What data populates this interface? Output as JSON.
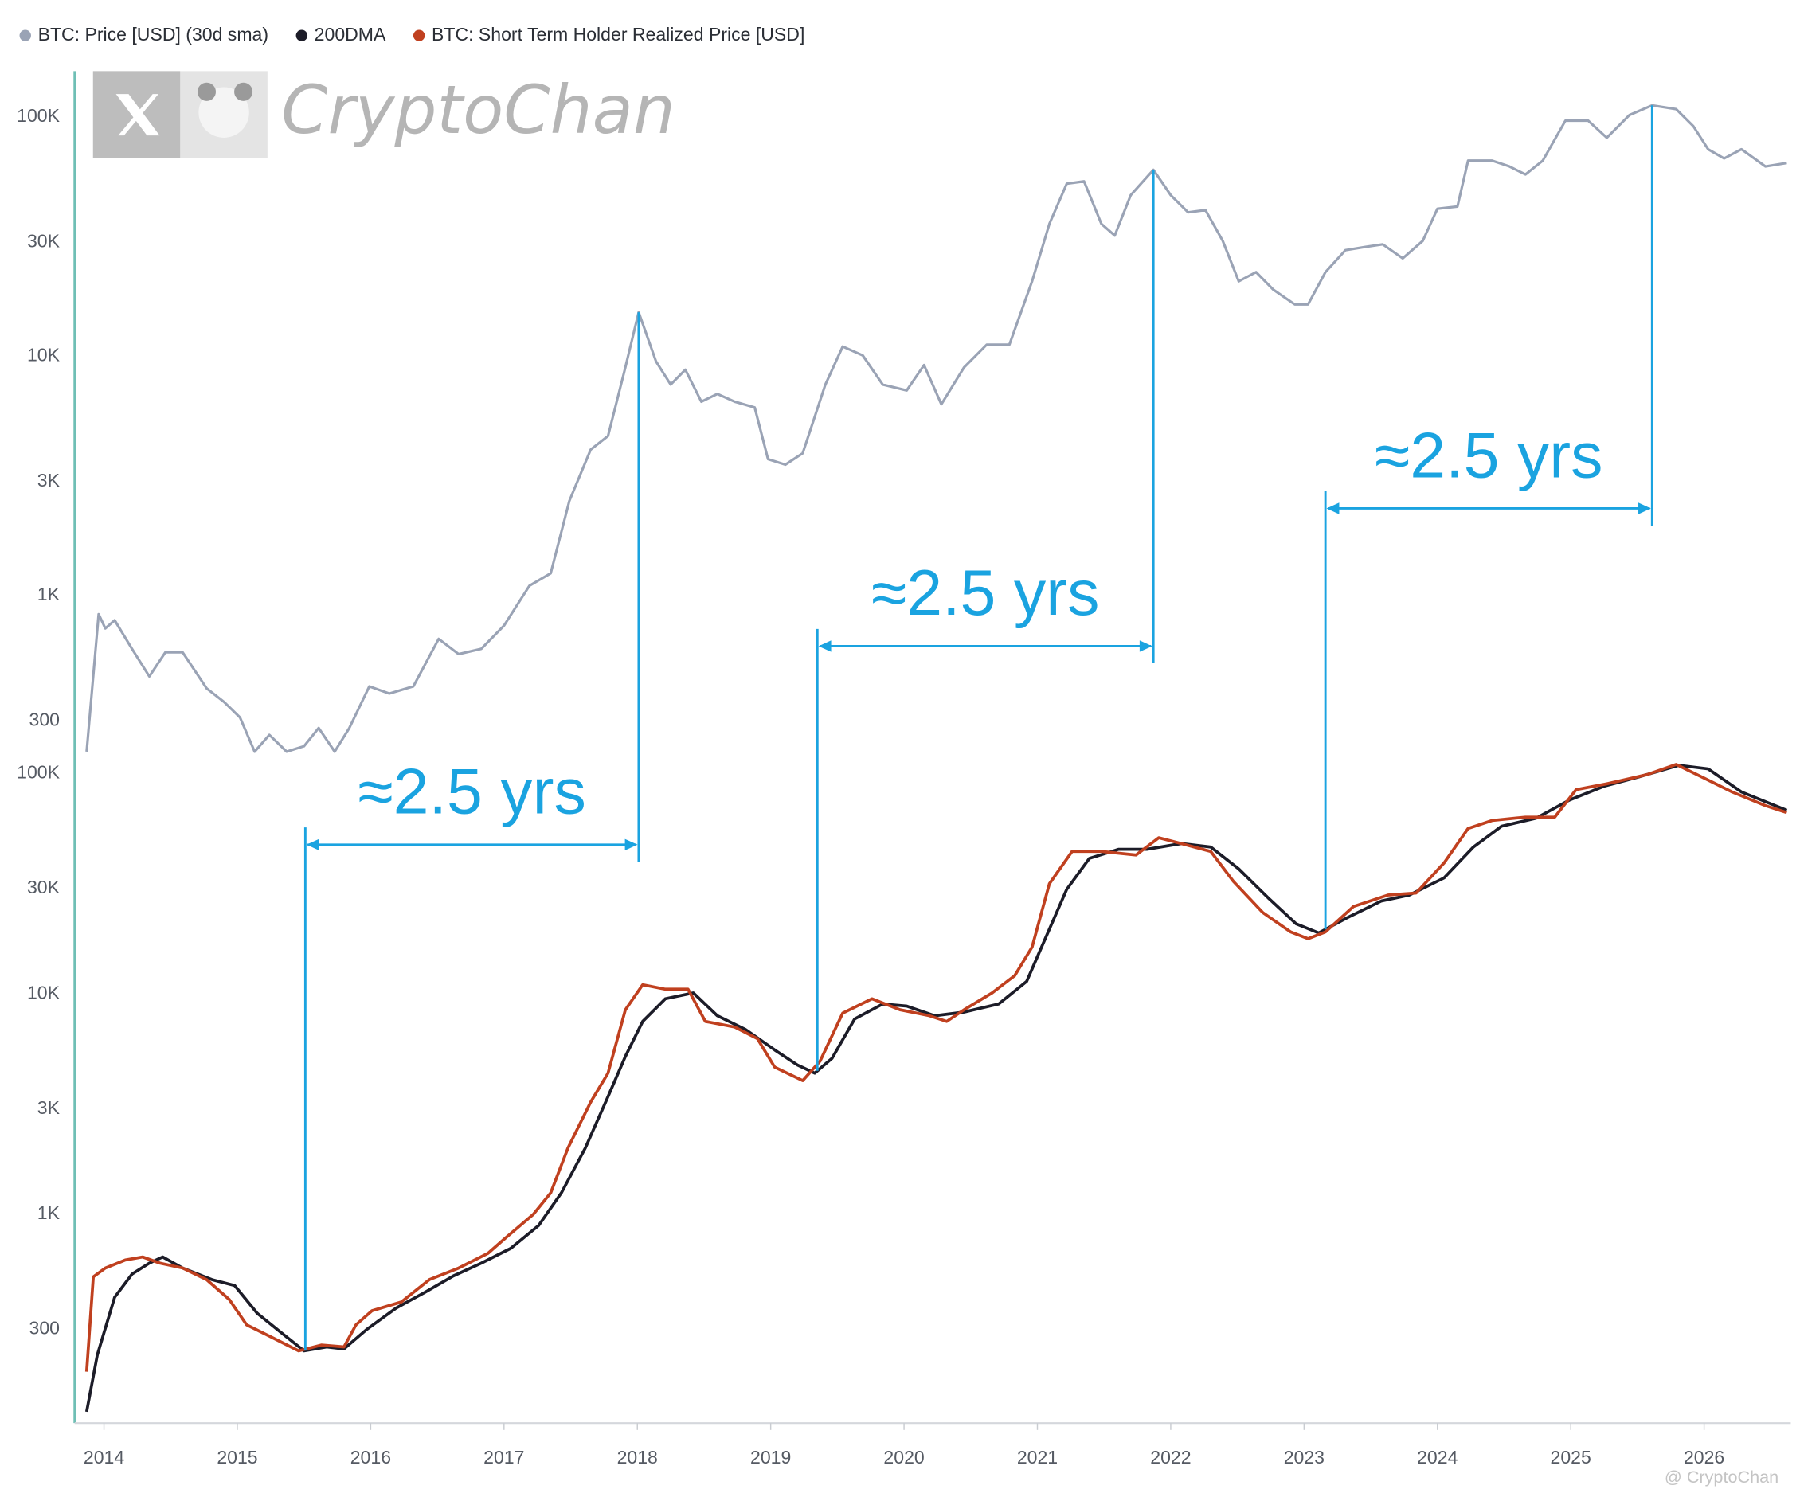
{
  "watermark": "CryptoChan",
  "credit": "@ CryptoChan",
  "annotations": [
    {
      "text": "≈2.5 yrs",
      "x": [
        2015.51,
        2018.01
      ]
    },
    {
      "text": "≈2.5 yrs",
      "x": [
        2019.35,
        2021.87
      ]
    },
    {
      "text": "≈2.5 yrs",
      "x": [
        2023.16,
        2025.61
      ]
    }
  ],
  "chart_data": [
    {
      "type": "line",
      "log_scale": true,
      "grid": false,
      "legend": "top-left",
      "xlim": [
        2013.78,
        2026.65
      ],
      "ylim": [
        200,
        160000
      ],
      "yticks": [
        {
          "value": 300,
          "label": "300"
        },
        {
          "value": 1000,
          "label": "1K"
        },
        {
          "value": 3000,
          "label": "3K"
        },
        {
          "value": 10000,
          "label": "10K"
        },
        {
          "value": 30000,
          "label": "30K"
        },
        {
          "value": 100000,
          "label": "100K"
        }
      ],
      "series": [
        {
          "name": "BTC: Price [USD] (30d sma)",
          "color": "#9aa3b5",
          "x": [
            2013.87,
            2013.96,
            2014.01,
            2014.08,
            2014.21,
            2014.34,
            2014.46,
            2014.59,
            2014.77,
            2014.9,
            2015.02,
            2015.13,
            2015.24,
            2015.37,
            2015.5,
            2015.61,
            2015.73,
            2015.84,
            2015.99,
            2016.14,
            2016.32,
            2016.51,
            2016.66,
            2016.83,
            2017.0,
            2017.19,
            2017.35,
            2017.49,
            2017.65,
            2017.78,
            2017.91,
            2018.01,
            2018.14,
            2018.25,
            2018.36,
            2018.48,
            2018.6,
            2018.73,
            2018.88,
            2018.98,
            2019.11,
            2019.24,
            2019.41,
            2019.54,
            2019.69,
            2019.84,
            2020.02,
            2020.15,
            2020.28,
            2020.45,
            2020.62,
            2020.79,
            2020.96,
            2021.09,
            2021.22,
            2021.35,
            2021.48,
            2021.58,
            2021.7,
            2021.87,
            2022.0,
            2022.13,
            2022.26,
            2022.39,
            2022.51,
            2022.64,
            2022.77,
            2022.93,
            2023.03,
            2023.16,
            2023.31,
            2023.46,
            2023.59,
            2023.74,
            2023.89,
            2024.0,
            2024.15,
            2024.23,
            2024.41,
            2024.54,
            2024.66,
            2024.79,
            2024.96,
            2025.13,
            2025.27,
            2025.44,
            2025.61,
            2025.79,
            2025.92,
            2026.03,
            2026.15,
            2026.28,
            2026.46,
            2026.62
          ],
          "values": [
            223,
            837,
            730,
            790,
            600,
            460,
            580,
            580,
            410,
            360,
            310,
            223,
            262,
            223,
            235,
            280,
            223,
            280,
            418,
            390,
            418,
            660,
            570,
            600,
            750,
            1100,
            1240,
            2490,
            4080,
            4650,
            9000,
            15300,
            9530,
            7630,
            8800,
            6470,
            6970,
            6470,
            6120,
            3720,
            3530,
            3940,
            7630,
            11000,
            10100,
            7630,
            7210,
            9200,
            6310,
            9000,
            11200,
            11200,
            20600,
            35800,
            52700,
            53900,
            35800,
            32000,
            47200,
            60200,
            47200,
            40000,
            40900,
            30400,
            20600,
            22500,
            19000,
            16500,
            16500,
            22500,
            27800,
            28700,
            29400,
            25700,
            30400,
            41400,
            42300,
            65800,
            65800,
            62200,
            57600,
            65800,
            96700,
            96700,
            82000,
            102000,
            112000,
            108000,
            91500,
            73400,
            67200,
            73400,
            62200,
            64300
          ]
        }
      ]
    },
    {
      "type": "line",
      "log_scale": true,
      "grid": false,
      "xlim": [
        2013.78,
        2026.65
      ],
      "ylim": [
        112,
        120000
      ],
      "xticks": [
        2014,
        2015,
        2016,
        2017,
        2018,
        2019,
        2020,
        2021,
        2022,
        2023,
        2024,
        2025,
        2026
      ],
      "yticks": [
        {
          "value": 300,
          "label": "300"
        },
        {
          "value": 1000,
          "label": "1K"
        },
        {
          "value": 3000,
          "label": "3K"
        },
        {
          "value": 10000,
          "label": "10K"
        },
        {
          "value": 30000,
          "label": "30K"
        },
        {
          "value": 100000,
          "label": "100K"
        }
      ],
      "series": [
        {
          "name": "200DMA",
          "color": "#1c1c28",
          "x": [
            2013.87,
            2013.95,
            2014.08,
            2014.21,
            2014.34,
            2014.44,
            2014.59,
            2014.81,
            2014.98,
            2015.15,
            2015.33,
            2015.5,
            2015.67,
            2015.8,
            2015.97,
            2016.19,
            2016.4,
            2016.62,
            2016.83,
            2017.05,
            2017.26,
            2017.43,
            2017.61,
            2017.78,
            2017.91,
            2018.04,
            2018.21,
            2018.42,
            2018.6,
            2018.81,
            2019.03,
            2019.2,
            2019.33,
            2019.46,
            2019.63,
            2019.84,
            2020.02,
            2020.23,
            2020.45,
            2020.71,
            2020.92,
            2021.05,
            2021.22,
            2021.39,
            2021.61,
            2021.82,
            2022.08,
            2022.3,
            2022.51,
            2022.73,
            2022.94,
            2023.11,
            2023.32,
            2023.58,
            2023.79,
            2024.05,
            2024.27,
            2024.48,
            2024.74,
            2024.99,
            2025.25,
            2025.51,
            2025.81,
            2026.03,
            2026.28,
            2026.62
          ],
          "values": [
            127,
            230,
            420,
            535,
            600,
            640,
            570,
            505,
            475,
            355,
            290,
            240,
            250,
            245,
            300,
            375,
            440,
            525,
            600,
            700,
            890,
            1250,
            2000,
            3420,
            5200,
            7500,
            9500,
            10100,
            7960,
            6900,
            5570,
            4760,
            4370,
            5100,
            7700,
            9000,
            8800,
            7960,
            8270,
            9000,
            11400,
            17300,
            29800,
            41200,
            45300,
            45300,
            48100,
            46400,
            36900,
            27300,
            20800,
            18900,
            22100,
            26400,
            28100,
            33600,
            46400,
            57600,
            62700,
            75800,
            87600,
            96500,
            109000,
            105000,
            82500,
            68100
          ]
        },
        {
          "name": "BTC: Short Term Holder Realized Price [USD]",
          "color": "#c0401f",
          "x": [
            2013.87,
            2013.92,
            2014.01,
            2014.16,
            2014.29,
            2014.42,
            2014.59,
            2014.77,
            2014.94,
            2015.07,
            2015.24,
            2015.46,
            2015.63,
            2015.8,
            2015.89,
            2016.01,
            2016.23,
            2016.44,
            2016.66,
            2016.88,
            2017.0,
            2017.22,
            2017.35,
            2017.48,
            2017.65,
            2017.78,
            2017.91,
            2018.04,
            2018.21,
            2018.38,
            2018.51,
            2018.73,
            2018.9,
            2019.03,
            2019.24,
            2019.37,
            2019.54,
            2019.76,
            2019.97,
            2020.19,
            2020.32,
            2020.45,
            2020.66,
            2020.83,
            2020.96,
            2021.09,
            2021.26,
            2021.48,
            2021.74,
            2021.91,
            2022.08,
            2022.3,
            2022.47,
            2022.69,
            2022.9,
            2023.03,
            2023.16,
            2023.37,
            2023.63,
            2023.84,
            2024.05,
            2024.23,
            2024.41,
            2024.66,
            2024.88,
            2025.04,
            2025.27,
            2025.57,
            2025.79,
            2026.0,
            2026.21,
            2026.46,
            2026.62
          ],
          "values": [
            193,
            520,
            570,
            620,
            640,
            600,
            570,
            505,
            410,
            315,
            280,
            240,
            255,
            250,
            315,
            365,
            400,
            505,
            570,
            665,
            770,
            1000,
            1250,
            2000,
            3230,
            4370,
            8470,
            11000,
            10500,
            10500,
            7500,
            7070,
            6270,
            4650,
            4040,
            4950,
            8180,
            9500,
            8470,
            7960,
            7500,
            8470,
            10100,
            12100,
            16300,
            31600,
            44300,
            44300,
            42700,
            51100,
            48100,
            44300,
            32400,
            23400,
            19100,
            17800,
            19100,
            24900,
            28100,
            28700,
            39300,
            56300,
            61200,
            63400,
            63400,
            84500,
            89800,
            98800,
            110000,
            95300,
            82500,
            71500,
            66500
          ]
        }
      ]
    }
  ]
}
